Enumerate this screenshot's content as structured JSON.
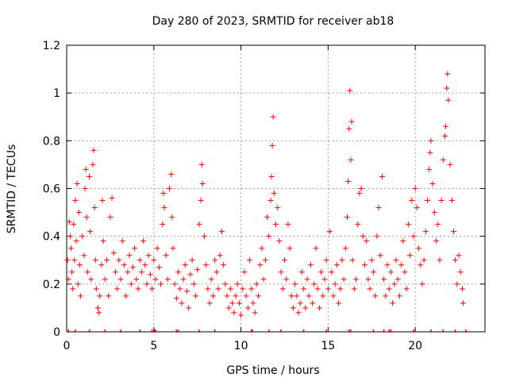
{
  "chart_data": {
    "type": "scatter",
    "title": "Day 280 of 2023, SRMTID for receiver ab18",
    "xlabel": "GPS time / hours",
    "ylabel": "SRMTID / TECUs",
    "xlim": [
      0,
      24
    ],
    "ylim": [
      0,
      1.2
    ],
    "x_ticks": [
      0,
      5,
      10,
      15,
      20
    ],
    "x_tick_labels": [
      "0",
      "5",
      "10",
      "15",
      "20"
    ],
    "y_ticks": [
      0,
      0.2,
      0.4,
      0.6,
      0.8,
      1.0,
      1.2
    ],
    "y_tick_labels": [
      "0",
      "0.2",
      "0.4",
      "0.6",
      "0.8",
      "1",
      "1.2"
    ],
    "grid": true,
    "marker": "+",
    "color": "#ff0000",
    "series": [
      {
        "name": "SRMTID",
        "points": [
          [
            0.05,
            0.3
          ],
          [
            0.1,
            0.22
          ],
          [
            0.15,
            0.46
          ],
          [
            0.2,
            0.4
          ],
          [
            0.25,
            0.35
          ],
          [
            0.3,
            0.25
          ],
          [
            0.35,
            0.18
          ],
          [
            0.4,
            0.45
          ],
          [
            0.45,
            0.3
          ],
          [
            0.5,
            0.55
          ],
          [
            0.55,
            0.38
          ],
          [
            0.6,
            0.62
          ],
          [
            0.65,
            0.2
          ],
          [
            0.7,
            0.5
          ],
          [
            0.75,
            0.28
          ],
          [
            0.8,
            0.15
          ],
          [
            0.9,
            0.4
          ],
          [
            1.0,
            0.32
          ],
          [
            1.05,
            0.6
          ],
          [
            1.1,
            0.68
          ],
          [
            1.15,
            0.48
          ],
          [
            1.2,
            0.25
          ],
          [
            1.3,
            0.65
          ],
          [
            1.35,
            0.42
          ],
          [
            1.4,
            0.22
          ],
          [
            1.5,
            0.7
          ],
          [
            1.55,
            0.76
          ],
          [
            1.6,
            0.52
          ],
          [
            1.65,
            0.3
          ],
          [
            1.7,
            0.18
          ],
          [
            1.8,
            0.1
          ],
          [
            1.85,
            0.08
          ],
          [
            1.9,
            0.15
          ],
          [
            2.0,
            0.28
          ],
          [
            2.05,
            0.55
          ],
          [
            2.1,
            0.38
          ],
          [
            2.2,
            0.22
          ],
          [
            2.3,
            0.3
          ],
          [
            2.4,
            0.15
          ],
          [
            2.5,
            0.48
          ],
          [
            2.6,
            0.56
          ],
          [
            2.7,
            0.33
          ],
          [
            2.8,
            0.25
          ],
          [
            2.9,
            0.18
          ],
          [
            3.0,
            0.3
          ],
          [
            3.1,
            0.22
          ],
          [
            3.2,
            0.38
          ],
          [
            3.3,
            0.28
          ],
          [
            3.4,
            0.15
          ],
          [
            3.5,
            0.25
          ],
          [
            3.6,
            0.32
          ],
          [
            3.7,
            0.2
          ],
          [
            3.8,
            0.27
          ],
          [
            3.9,
            0.35
          ],
          [
            4.0,
            0.22
          ],
          [
            4.1,
            0.18
          ],
          [
            4.2,
            0.3
          ],
          [
            4.3,
            0.25
          ],
          [
            4.4,
            0.38
          ],
          [
            4.5,
            0.28
          ],
          [
            4.6,
            0.2
          ],
          [
            4.7,
            0.32
          ],
          [
            4.8,
            0.24
          ],
          [
            4.9,
            0.18
          ],
          [
            5.0,
            0.3
          ],
          [
            5.1,
            0.22
          ],
          [
            5.2,
            0.35
          ],
          [
            5.3,
            0.27
          ],
          [
            5.4,
            0.2
          ],
          [
            5.5,
            0.45
          ],
          [
            5.55,
            0.58
          ],
          [
            5.6,
            0.52
          ],
          [
            5.7,
            0.32
          ],
          [
            5.8,
            0.22
          ],
          [
            5.9,
            0.6
          ],
          [
            6.0,
            0.66
          ],
          [
            6.05,
            0.48
          ],
          [
            6.1,
            0.35
          ],
          [
            6.2,
            0.2
          ],
          [
            6.3,
            0.14
          ],
          [
            6.4,
            0.25
          ],
          [
            6.5,
            0.18
          ],
          [
            6.6,
            0.12
          ],
          [
            6.7,
            0.22
          ],
          [
            6.8,
            0.28
          ],
          [
            6.9,
            0.17
          ],
          [
            7.0,
            0.1
          ],
          [
            7.1,
            0.24
          ],
          [
            7.2,
            0.3
          ],
          [
            7.3,
            0.2
          ],
          [
            7.4,
            0.15
          ],
          [
            7.5,
            0.26
          ],
          [
            7.6,
            0.45
          ],
          [
            7.7,
            0.55
          ],
          [
            7.75,
            0.7
          ],
          [
            7.8,
            0.62
          ],
          [
            7.9,
            0.4
          ],
          [
            8.0,
            0.28
          ],
          [
            8.1,
            0.18
          ],
          [
            8.2,
            0.12
          ],
          [
            8.3,
            0.22
          ],
          [
            8.4,
            0.15
          ],
          [
            8.5,
            0.3
          ],
          [
            8.6,
            0.25
          ],
          [
            8.7,
            0.18
          ],
          [
            8.8,
            0.32
          ],
          [
            8.9,
            0.42
          ],
          [
            9.0,
            0.28
          ],
          [
            9.1,
            0.2
          ],
          [
            9.2,
            0.15
          ],
          [
            9.3,
            0.1
          ],
          [
            9.4,
            0.18
          ],
          [
            9.5,
            0.12
          ],
          [
            9.6,
            0.08
          ],
          [
            9.7,
            0.15
          ],
          [
            9.8,
            0.2
          ],
          [
            9.9,
            0.12
          ],
          [
            10.0,
            0.07
          ],
          [
            10.1,
            0.18
          ],
          [
            10.2,
            0.25
          ],
          [
            10.3,
            0.15
          ],
          [
            10.4,
            0.1
          ],
          [
            10.5,
            0.3
          ],
          [
            10.6,
            0.18
          ],
          [
            10.7,
            0.12
          ],
          [
            10.8,
            0.08
          ],
          [
            10.9,
            0.2
          ],
          [
            11.0,
            0.15
          ],
          [
            11.1,
            0.28
          ],
          [
            11.2,
            0.35
          ],
          [
            11.3,
            0.22
          ],
          [
            11.4,
            0.3
          ],
          [
            11.5,
            0.48
          ],
          [
            11.6,
            0.4
          ],
          [
            11.7,
            0.55
          ],
          [
            11.75,
            0.65
          ],
          [
            11.8,
            0.78
          ],
          [
            11.85,
            0.9
          ],
          [
            11.9,
            0.58
          ],
          [
            12.0,
            0.45
          ],
          [
            12.1,
            0.52
          ],
          [
            12.2,
            0.38
          ],
          [
            12.3,
            0.25
          ],
          [
            12.4,
            0.18
          ],
          [
            12.5,
            0.3
          ],
          [
            12.6,
            0.22
          ],
          [
            12.7,
            0.45
          ],
          [
            12.8,
            0.35
          ],
          [
            12.9,
            0.15
          ],
          [
            13.0,
            0.1
          ],
          [
            13.1,
            0.2
          ],
          [
            13.2,
            0.15
          ],
          [
            13.3,
            0.08
          ],
          [
            13.4,
            0.12
          ],
          [
            13.5,
            0.25
          ],
          [
            13.6,
            0.18
          ],
          [
            13.7,
            0.1
          ],
          [
            13.8,
            0.22
          ],
          [
            13.9,
            0.15
          ],
          [
            14.0,
            0.28
          ],
          [
            14.1,
            0.12
          ],
          [
            14.2,
            0.2
          ],
          [
            14.3,
            0.35
          ],
          [
            14.4,
            0.18
          ],
          [
            14.5,
            0.1
          ],
          [
            14.6,
            0.25
          ],
          [
            14.7,
            0.15
          ],
          [
            14.8,
            0.22
          ],
          [
            14.9,
            0.3
          ],
          [
            15.0,
            0.18
          ],
          [
            15.1,
            0.42
          ],
          [
            15.2,
            0.25
          ],
          [
            15.3,
            0.15
          ],
          [
            15.4,
            0.2
          ],
          [
            15.5,
            0.28
          ],
          [
            15.6,
            0.12
          ],
          [
            15.7,
            0.18
          ],
          [
            15.8,
            0.3
          ],
          [
            15.9,
            0.22
          ],
          [
            16.0,
            0.35
          ],
          [
            16.1,
            0.48
          ],
          [
            16.15,
            0.63
          ],
          [
            16.2,
            0.85
          ],
          [
            16.25,
            1.01
          ],
          [
            16.3,
            0.72
          ],
          [
            16.35,
            0.88
          ],
          [
            16.4,
            0.3
          ],
          [
            16.5,
            0.18
          ],
          [
            16.6,
            0.22
          ],
          [
            16.7,
            0.45
          ],
          [
            16.8,
            0.58
          ],
          [
            16.9,
            0.6
          ],
          [
            17.0,
            0.4
          ],
          [
            17.1,
            0.28
          ],
          [
            17.2,
            0.38
          ],
          [
            17.3,
            0.22
          ],
          [
            17.4,
            0.18
          ],
          [
            17.5,
            0.3
          ],
          [
            17.6,
            0.25
          ],
          [
            17.7,
            0.15
          ],
          [
            17.8,
            0.4
          ],
          [
            17.9,
            0.52
          ],
          [
            18.0,
            0.32
          ],
          [
            18.1,
            0.65
          ],
          [
            18.2,
            0.22
          ],
          [
            18.3,
            0.15
          ],
          [
            18.4,
            0.28
          ],
          [
            18.5,
            0.18
          ],
          [
            18.6,
            0.25
          ],
          [
            18.7,
            0.12
          ],
          [
            18.8,
            0.2
          ],
          [
            18.9,
            0.3
          ],
          [
            19.0,
            0.22
          ],
          [
            19.1,
            0.15
          ],
          [
            19.2,
            0.28
          ],
          [
            19.3,
            0.38
          ],
          [
            19.4,
            0.25
          ],
          [
            19.5,
            0.18
          ],
          [
            19.6,
            0.45
          ],
          [
            19.7,
            0.32
          ],
          [
            19.8,
            0.55
          ],
          [
            19.9,
            0.4
          ],
          [
            20.0,
            0.6
          ],
          [
            20.1,
            0.52
          ],
          [
            20.2,
            0.35
          ],
          [
            20.3,
            0.28
          ],
          [
            20.4,
            0.2
          ],
          [
            20.5,
            0.3
          ],
          [
            20.6,
            0.42
          ],
          [
            20.7,
            0.55
          ],
          [
            20.8,
            0.68
          ],
          [
            20.85,
            0.75
          ],
          [
            20.9,
            0.8
          ],
          [
            21.0,
            0.62
          ],
          [
            21.1,
            0.5
          ],
          [
            21.2,
            0.38
          ],
          [
            21.3,
            0.45
          ],
          [
            21.4,
            0.3
          ],
          [
            21.5,
            0.55
          ],
          [
            21.6,
            0.72
          ],
          [
            21.7,
            0.82
          ],
          [
            21.75,
            0.86
          ],
          [
            21.8,
            1.02
          ],
          [
            21.85,
            1.08
          ],
          [
            21.9,
            0.97
          ],
          [
            22.0,
            0.7
          ],
          [
            22.1,
            0.55
          ],
          [
            22.2,
            0.42
          ],
          [
            22.3,
            0.3
          ],
          [
            22.4,
            0.2
          ],
          [
            22.5,
            0.32
          ],
          [
            22.6,
            0.25
          ],
          [
            22.7,
            0.18
          ],
          [
            22.75,
            0.12
          ]
        ]
      }
    ],
    "baseline_ticks": [
      0.1,
      0.5,
      1.3,
      2.2,
      3.1,
      4.2,
      4.9,
      5.05,
      5.1,
      6.3,
      6.4,
      7.6,
      8.5,
      10.6,
      10.65,
      11.6,
      12.3,
      13.6,
      14.9,
      16.2,
      16.3,
      17.6,
      18.2,
      18.5,
      18.6,
      19.9,
      20.9,
      21.6,
      22.3,
      22.9
    ]
  }
}
